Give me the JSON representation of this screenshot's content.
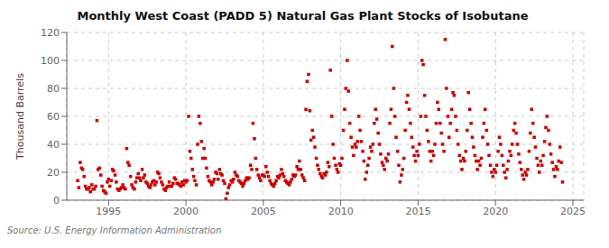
{
  "chart_data": {
    "type": "scatter",
    "title": "Monthly West Coast (PADD 5) Natural Gas Plant Stocks of Isobutane",
    "ylabel": "Thousand Barrels",
    "source": "Source: U.S. Energy Information Administration",
    "color": "#CC0000",
    "marker": "square",
    "grid": true,
    "xlim": [
      1992.3,
      2025.7
    ],
    "ylim": [
      0,
      120
    ],
    "xticks": [
      1995,
      2000,
      2005,
      2010,
      2015,
      2020,
      2025
    ],
    "yticks": [
      0,
      20,
      40,
      60,
      80,
      100,
      120
    ],
    "x": [
      1993.0,
      1993.08,
      1993.17,
      1993.25,
      1993.33,
      1993.42,
      1993.5,
      1993.58,
      1993.67,
      1993.75,
      1993.83,
      1993.92,
      1994.0,
      1994.08,
      1994.17,
      1994.25,
      1994.33,
      1994.42,
      1994.5,
      1994.58,
      1994.67,
      1994.75,
      1994.83,
      1994.92,
      1995.0,
      1995.08,
      1995.17,
      1995.25,
      1995.33,
      1995.42,
      1995.5,
      1995.58,
      1995.67,
      1995.75,
      1995.83,
      1995.92,
      1996.0,
      1996.08,
      1996.17,
      1996.25,
      1996.33,
      1996.42,
      1996.5,
      1996.58,
      1996.67,
      1996.75,
      1996.83,
      1996.92,
      1997.0,
      1997.08,
      1997.17,
      1997.25,
      1997.33,
      1997.42,
      1997.5,
      1997.58,
      1997.67,
      1997.75,
      1997.83,
      1997.92,
      1998.0,
      1998.08,
      1998.17,
      1998.25,
      1998.33,
      1998.42,
      1998.5,
      1998.58,
      1998.67,
      1998.75,
      1998.83,
      1998.92,
      1999.0,
      1999.08,
      1999.17,
      1999.25,
      1999.33,
      1999.42,
      1999.5,
      1999.58,
      1999.67,
      1999.75,
      1999.83,
      1999.92,
      2000.0,
      2000.08,
      2000.17,
      2000.25,
      2000.33,
      2000.42,
      2000.5,
      2000.58,
      2000.67,
      2000.75,
      2000.83,
      2000.92,
      2001.0,
      2001.08,
      2001.17,
      2001.25,
      2001.33,
      2001.42,
      2001.5,
      2001.58,
      2001.67,
      2001.75,
      2001.83,
      2001.92,
      2002.0,
      2002.08,
      2002.17,
      2002.25,
      2002.33,
      2002.42,
      2002.5,
      2002.58,
      2002.67,
      2002.75,
      2002.83,
      2002.92,
      2003.0,
      2003.08,
      2003.17,
      2003.25,
      2003.33,
      2003.42,
      2003.5,
      2003.58,
      2003.67,
      2003.75,
      2003.83,
      2003.92,
      2004.0,
      2004.08,
      2004.17,
      2004.25,
      2004.33,
      2004.42,
      2004.5,
      2004.58,
      2004.67,
      2004.75,
      2004.83,
      2004.92,
      2005.0,
      2005.08,
      2005.17,
      2005.25,
      2005.33,
      2005.42,
      2005.5,
      2005.58,
      2005.67,
      2005.75,
      2005.83,
      2005.92,
      2006.0,
      2006.08,
      2006.17,
      2006.25,
      2006.33,
      2006.42,
      2006.5,
      2006.58,
      2006.67,
      2006.75,
      2006.83,
      2006.92,
      2007.0,
      2007.08,
      2007.17,
      2007.25,
      2007.33,
      2007.42,
      2007.5,
      2007.58,
      2007.67,
      2007.75,
      2007.83,
      2007.92,
      2008.0,
      2008.08,
      2008.17,
      2008.25,
      2008.33,
      2008.42,
      2008.5,
      2008.58,
      2008.67,
      2008.75,
      2008.83,
      2008.92,
      2009.0,
      2009.08,
      2009.17,
      2009.25,
      2009.33,
      2009.42,
      2009.5,
      2009.58,
      2009.67,
      2009.75,
      2009.83,
      2009.92,
      2010.0,
      2010.08,
      2010.17,
      2010.25,
      2010.33,
      2010.42,
      2010.5,
      2010.58,
      2010.67,
      2010.75,
      2010.83,
      2010.92,
      2011.0,
      2011.08,
      2011.17,
      2011.25,
      2011.33,
      2011.42,
      2011.5,
      2011.58,
      2011.67,
      2011.75,
      2011.83,
      2011.92,
      2012.0,
      2012.08,
      2012.17,
      2012.25,
      2012.33,
      2012.42,
      2012.5,
      2012.58,
      2012.67,
      2012.75,
      2012.83,
      2012.92,
      2013.0,
      2013.08,
      2013.17,
      2013.25,
      2013.33,
      2013.42,
      2013.5,
      2013.58,
      2013.67,
      2013.75,
      2013.83,
      2013.92,
      2014.0,
      2014.08,
      2014.17,
      2014.25,
      2014.33,
      2014.42,
      2014.5,
      2014.58,
      2014.67,
      2014.75,
      2014.83,
      2014.92,
      2015.0,
      2015.08,
      2015.17,
      2015.25,
      2015.33,
      2015.42,
      2015.5,
      2015.58,
      2015.67,
      2015.75,
      2015.83,
      2015.92,
      2016.0,
      2016.08,
      2016.17,
      2016.25,
      2016.33,
      2016.42,
      2016.5,
      2016.58,
      2016.67,
      2016.75,
      2016.83,
      2016.92,
      2017.0,
      2017.08,
      2017.17,
      2017.25,
      2017.33,
      2017.42,
      2017.5,
      2017.58,
      2017.67,
      2017.75,
      2017.83,
      2017.92,
      2018.0,
      2018.08,
      2018.17,
      2018.25,
      2018.33,
      2018.42,
      2018.5,
      2018.58,
      2018.67,
      2018.75,
      2018.83,
      2018.92,
      2019.0,
      2019.08,
      2019.17,
      2019.25,
      2019.33,
      2019.42,
      2019.5,
      2019.58,
      2019.67,
      2019.75,
      2019.83,
      2019.92,
      2020.0,
      2020.08,
      2020.17,
      2020.25,
      2020.33,
      2020.42,
      2020.5,
      2020.58,
      2020.67,
      2020.75,
      2020.83,
      2020.92,
      2021.0,
      2021.08,
      2021.17,
      2021.25,
      2021.33,
      2021.42,
      2021.5,
      2021.58,
      2021.67,
      2021.75,
      2021.83,
      2021.92,
      2022.0,
      2022.08,
      2022.17,
      2022.25,
      2022.33,
      2022.42,
      2022.5,
      2022.58,
      2022.67,
      2022.75,
      2022.83,
      2022.92,
      2023.0,
      2023.08,
      2023.17,
      2023.25,
      2023.33,
      2023.42,
      2023.5,
      2023.58,
      2023.67,
      2023.75,
      2023.83,
      2023.92,
      2024.0,
      2024.08,
      2024.17,
      2024.25,
      2024.33
    ],
    "values": [
      14,
      9,
      27,
      23,
      22,
      17,
      10,
      8,
      8,
      9,
      6,
      11,
      8,
      8,
      10,
      57,
      22,
      23,
      18,
      10,
      7,
      6,
      5,
      13,
      15,
      10,
      14,
      22,
      21,
      18,
      13,
      8,
      7,
      8,
      9,
      11,
      9,
      8,
      37,
      27,
      25,
      17,
      11,
      9,
      8,
      13,
      16,
      19,
      16,
      14,
      22,
      16,
      18,
      13,
      12,
      10,
      9,
      11,
      13,
      14,
      11,
      13,
      20,
      19,
      16,
      13,
      11,
      8,
      7,
      9,
      10,
      13,
      10,
      10,
      12,
      16,
      15,
      12,
      12,
      11,
      10,
      13,
      11,
      14,
      13,
      14,
      60,
      35,
      30,
      22,
      17,
      14,
      11,
      40,
      60,
      55,
      42,
      30,
      37,
      30,
      23,
      17,
      14,
      13,
      11,
      13,
      15,
      20,
      19,
      15,
      22,
      19,
      18,
      14,
      12,
      1,
      5,
      9,
      11,
      14,
      13,
      15,
      20,
      18,
      17,
      14,
      13,
      12,
      10,
      12,
      14,
      16,
      15,
      16,
      25,
      22,
      55,
      44,
      30,
      22,
      18,
      16,
      14,
      18,
      18,
      17,
      24,
      20,
      17,
      14,
      12,
      11,
      10,
      12,
      14,
      17,
      16,
      18,
      22,
      19,
      17,
      14,
      13,
      12,
      11,
      13,
      15,
      18,
      17,
      18,
      24,
      22,
      28,
      22,
      18,
      16,
      14,
      65,
      85,
      90,
      64,
      43,
      50,
      45,
      38,
      30,
      25,
      22,
      19,
      17,
      16,
      19,
      18,
      20,
      27,
      24,
      93,
      60,
      40,
      30,
      25,
      22,
      20,
      26,
      25,
      30,
      50,
      65,
      80,
      100,
      78,
      55,
      45,
      38,
      32,
      40,
      38,
      42,
      60,
      50,
      42,
      35,
      28,
      15,
      20,
      25,
      30,
      38,
      35,
      40,
      55,
      65,
      58,
      48,
      40,
      33,
      27,
      25,
      22,
      30,
      28,
      33,
      55,
      65,
      110,
      80,
      60,
      45,
      35,
      25,
      13,
      18,
      22,
      30,
      50,
      70,
      75,
      65,
      55,
      45,
      38,
      32,
      28,
      35,
      32,
      40,
      60,
      100,
      97,
      75,
      60,
      50,
      42,
      35,
      28,
      35,
      32,
      40,
      55,
      70,
      65,
      55,
      48,
      40,
      35,
      115,
      80,
      60,
      45,
      55,
      65,
      77,
      75,
      60,
      50,
      40,
      32,
      28,
      22,
      30,
      28,
      35,
      50,
      77,
      65,
      55,
      45,
      38,
      32,
      28,
      22,
      28,
      25,
      30,
      45,
      55,
      65,
      50,
      40,
      32,
      25,
      20,
      17,
      22,
      20,
      25,
      35,
      45,
      40,
      32,
      25,
      20,
      16,
      22,
      28,
      35,
      32,
      40,
      50,
      55,
      48,
      40,
      33,
      27,
      22,
      18,
      15,
      20,
      18,
      22,
      35,
      48,
      65,
      55,
      45,
      38,
      30,
      25,
      20,
      28,
      25,
      32,
      42,
      52,
      60,
      50,
      40,
      33,
      27,
      22,
      17,
      24,
      22,
      28,
      38,
      27,
      13
    ]
  }
}
